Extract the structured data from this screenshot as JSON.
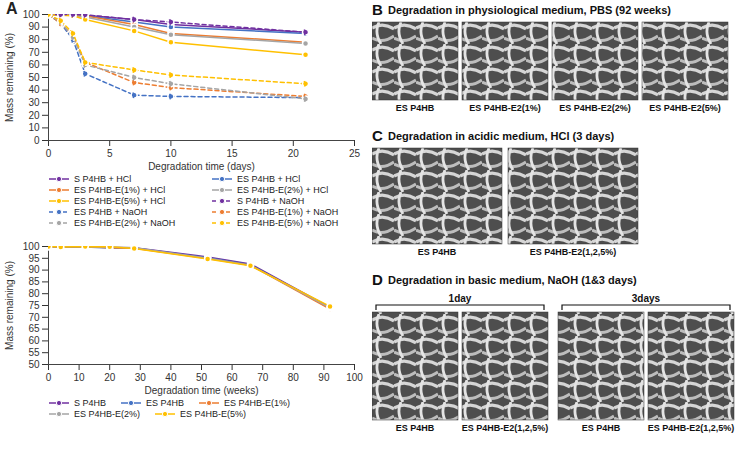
{
  "chart_data": [
    {
      "type": "line",
      "xlabel": "Degradation time (days)",
      "ylabel": "Mass remaining (%)",
      "x": [
        0,
        1,
        2,
        3,
        7,
        10,
        21
      ],
      "xlim": [
        0,
        25
      ],
      "xticks": [
        0,
        5,
        10,
        15,
        20,
        25
      ],
      "ylim": [
        0,
        100
      ],
      "yticks": [
        0,
        10,
        20,
        30,
        40,
        50,
        60,
        70,
        80,
        90,
        100
      ],
      "grid": false,
      "legend": "bottom",
      "series": [
        {
          "name": "S P4HB + HCl",
          "color": "#7030a0",
          "marker": "circle",
          "line_style": "solid",
          "values": [
            100,
            100,
            100,
            99.5,
            96,
            92,
            86
          ]
        },
        {
          "name": "ES P4HB + HCl",
          "color": "#4472c4",
          "marker": "circle",
          "line_style": "solid",
          "values": [
            100,
            100,
            100,
            99,
            94,
            90,
            85
          ]
        },
        {
          "name": "ES P4HB-E(1%) + HCl",
          "color": "#ed7d31",
          "marker": "circle",
          "line_style": "solid",
          "values": [
            100,
            100,
            99.5,
            99,
            92,
            85,
            78
          ]
        },
        {
          "name": "ES P4HB-E(2%) + HCl",
          "color": "#a5a5a5",
          "marker": "circle",
          "line_style": "solid",
          "values": [
            100,
            100,
            99,
            98,
            90,
            84,
            77
          ]
        },
        {
          "name": "ES P4HB-E(5%) + HCl",
          "color": "#ffc000",
          "marker": "circle",
          "line_style": "solid",
          "values": [
            100,
            99.5,
            99,
            96,
            87,
            78,
            68
          ]
        },
        {
          "name": "S P4HB + NaOH",
          "color": "#7030a0",
          "marker": "circle",
          "line_style": "dashed",
          "values": [
            100,
            100,
            100,
            99.8,
            96,
            94,
            86
          ]
        },
        {
          "name": "ES P4HB + NaOH",
          "color": "#4472c4",
          "marker": "circle",
          "line_style": "dashed",
          "values": [
            100,
            93,
            80,
            53,
            36,
            35,
            34
          ]
        },
        {
          "name": "ES P4HB-E(1%) + NaOH",
          "color": "#ed7d31",
          "marker": "circle",
          "line_style": "dashed",
          "values": [
            100,
            93,
            83,
            62,
            46,
            42,
            35
          ]
        },
        {
          "name": "ES P4HB-E(2%) + NaOH",
          "color": "#a5a5a5",
          "marker": "circle",
          "line_style": "dashed",
          "values": [
            100,
            94,
            82,
            60,
            50,
            45,
            33
          ]
        },
        {
          "name": "ES P4HB-E(5%) + NaOH",
          "color": "#ffc000",
          "marker": "circle",
          "line_style": "dashed",
          "values": [
            100,
            95,
            85,
            62,
            56,
            52,
            45
          ]
        }
      ]
    },
    {
      "type": "line",
      "xlabel": "Degradation time (weeks)",
      "ylabel": "Mass remaining (%)",
      "x": [
        0,
        4,
        12,
        20,
        28,
        52,
        66,
        92
      ],
      "xlim": [
        0,
        100
      ],
      "xticks": [
        0,
        10,
        20,
        30,
        40,
        50,
        60,
        70,
        80,
        90,
        100
      ],
      "ylim": [
        50,
        100
      ],
      "yticks": [
        50,
        55,
        60,
        65,
        70,
        75,
        80,
        85,
        90,
        95,
        100
      ],
      "grid": false,
      "legend": "bottom",
      "series": [
        {
          "name": "S P4HB",
          "color": "#7030a0",
          "marker": "circle",
          "line_style": "solid",
          "values": [
            100,
            99.8,
            99.9,
            99.6,
            99.5,
            95.6,
            92.6,
            74.2
          ]
        },
        {
          "name": "ES P4HB",
          "color": "#4472c4",
          "marker": "circle",
          "line_style": "solid",
          "values": [
            100,
            99.7,
            99.8,
            99.4,
            99.4,
            95.2,
            92.3,
            73.8
          ]
        },
        {
          "name": "ES P4HB-E(1%)",
          "color": "#ed7d31",
          "marker": "circle",
          "line_style": "solid",
          "values": [
            100,
            99.9,
            100,
            99.5,
            99.3,
            94.9,
            92.1,
            73.5
          ]
        },
        {
          "name": "ES P4HB-E(2%)",
          "color": "#a5a5a5",
          "marker": "circle",
          "line_style": "solid",
          "values": [
            100,
            100,
            99.9,
            99.8,
            99.5,
            95.0,
            92.0,
            74.0
          ]
        },
        {
          "name": "ES P4HB-E(5%)",
          "color": "#ffc000",
          "marker": "circle",
          "line_style": "solid",
          "values": [
            100,
            99.8,
            100,
            99.9,
            99.2,
            94.7,
            91.8,
            74.6
          ]
        }
      ]
    }
  ],
  "figure": {
    "panels": [
      {
        "label": "A"
      },
      {
        "label": "B",
        "title": "Degradation in physiological medium, PBS (92 weeks)",
        "images": [
          {
            "caption": "ES P4HB"
          },
          {
            "caption": "ES P4HB-E2(1%)"
          },
          {
            "caption": "ES P4HB-E2(2%)"
          },
          {
            "caption": "ES P4HB-E2(5%)"
          }
        ]
      },
      {
        "label": "C",
        "title": "Degradation in acidic medium, HCl (3 days)",
        "images": [
          {
            "caption": "ES P4HB"
          },
          {
            "caption": "ES P4HB-E2(1,2,5%)"
          }
        ]
      },
      {
        "label": "D",
        "title": "Degradation in basic medium, NaOH (1&3 days)",
        "groups": [
          {
            "label": "1day",
            "images": [
              {
                "caption": "ES P4HB"
              },
              {
                "caption": "ES P4HB-E2(1,2,5%)"
              }
            ]
          },
          {
            "label": "3days",
            "images": [
              {
                "caption": "ES P4HB"
              },
              {
                "caption": "ES P4HB-E2(1,2,5%)"
              }
            ]
          }
        ]
      }
    ]
  }
}
